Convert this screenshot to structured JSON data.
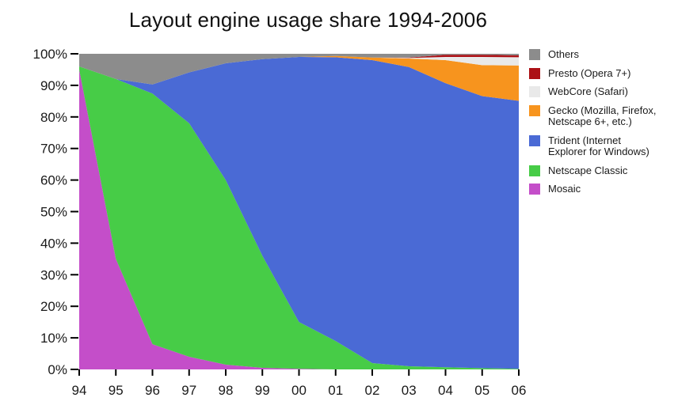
{
  "chart_data": {
    "type": "area",
    "stacked": true,
    "title": "Layout engine usage share 1994-2006",
    "xlabel": "",
    "ylabel": "",
    "ylim": [
      0,
      100
    ],
    "unit": "%",
    "grid": false,
    "legend_position": "right",
    "x_labels": [
      "94",
      "95",
      "96",
      "97",
      "98",
      "99",
      "00",
      "01",
      "02",
      "03",
      "04",
      "05",
      "06"
    ],
    "y_tick_labels": [
      "0%",
      "10%",
      "20%",
      "30%",
      "40%",
      "50%",
      "60%",
      "70%",
      "80%",
      "90%",
      "100%"
    ],
    "series": [
      {
        "name": "Mosaic",
        "color": "#C44EC9",
        "values": [
          95,
          35,
          8,
          4,
          1.5,
          0.5,
          0.2,
          0,
          0,
          0,
          0,
          0,
          0
        ]
      },
      {
        "name": "Netscape Classic",
        "color": "#47CC47",
        "values": [
          1,
          57,
          79.4,
          74,
          58.5,
          35.5,
          14.8,
          9,
          2,
          1,
          0.7,
          0.4,
          0.2
        ]
      },
      {
        "name": "Trident (Internet Explorer for Windows)",
        "color": "#4A6AD5",
        "values": [
          0,
          0,
          2.9,
          16.1,
          37,
          62.3,
          84,
          89.9,
          96,
          94.8,
          90,
          86.2,
          84.9
        ]
      },
      {
        "name": "Gecko (Mozilla, Firefox, Netscape 6+, etc.)",
        "color": "#F7941E",
        "values": [
          0,
          0,
          0,
          0,
          0,
          0,
          0,
          0.4,
          0.8,
          2.7,
          7.3,
          9.8,
          11.2
        ]
      },
      {
        "name": "WebCore (Safari)",
        "color": "#E9E9E9",
        "values": [
          0,
          0,
          0,
          0,
          0,
          0,
          0,
          0,
          0,
          0.2,
          1,
          2.6,
          2.6
        ]
      },
      {
        "name": "Presto (Opera 7+)",
        "color": "#AC1015",
        "values": [
          0,
          0,
          0,
          0,
          0,
          0,
          0,
          0,
          0,
          0.1,
          0.7,
          0.7,
          0.6
        ]
      },
      {
        "name": "Others",
        "color": "#8C8C8C",
        "values": [
          4,
          8,
          9.7,
          5.9,
          3,
          1.7,
          1,
          0.7,
          1.2,
          1.2,
          0.3,
          0.3,
          0.5
        ]
      }
    ],
    "legend": [
      {
        "label": "Others",
        "lines": [
          "Others"
        ],
        "color": "#8C8C8C"
      },
      {
        "label": "Presto (Opera 7+)",
        "lines": [
          "Presto (Opera 7+)"
        ],
        "color": "#AC1015"
      },
      {
        "label": "WebCore (Safari)",
        "lines": [
          "WebCore (Safari)"
        ],
        "color": "#E9E9E9"
      },
      {
        "label": "Gecko (Mozilla, Firefox, Netscape 6+, etc.)",
        "lines": [
          "Gecko (Mozilla, Firefox,",
          "Netscape 6+, etc.)"
        ],
        "color": "#F7941E"
      },
      {
        "label": "Trident (Internet Explorer for Windows)",
        "lines": [
          "Trident (Internet",
          "Explorer for Windows)"
        ],
        "color": "#4A6AD5"
      },
      {
        "label": "Netscape Classic",
        "lines": [
          "Netscape Classic"
        ],
        "color": "#47CC47"
      },
      {
        "label": "Mosaic",
        "lines": [
          "Mosaic"
        ],
        "color": "#C44EC9"
      }
    ],
    "text_color": "#1a1a1a",
    "tick_color": "#000000",
    "background": "#ffffff"
  }
}
